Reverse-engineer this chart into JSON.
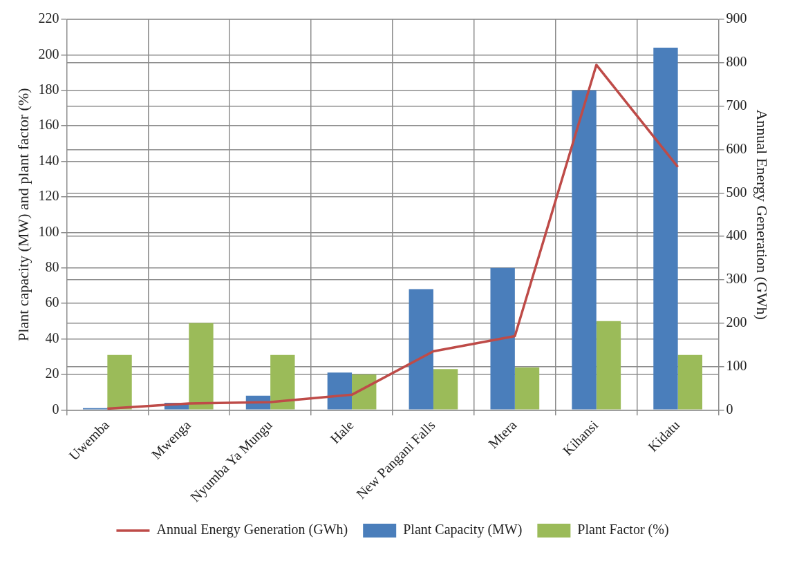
{
  "chart_data": {
    "type": "bar",
    "ylabel": "Plant capacity (MW) and plant factor (%)",
    "y2label": "Annual Energy Generation (GWh)",
    "categories": [
      "Uwemba",
      "Mwenga",
      "Nyumba Ya Mungu",
      "Hale",
      "New Pangani Falls",
      "Mtera",
      "Kihansi",
      "Kidatu"
    ],
    "series": [
      {
        "name": "Plant Capacity (MW)",
        "color": "#4a7ebb",
        "values": [
          1,
          4,
          8,
          21,
          68,
          80,
          180,
          204
        ]
      },
      {
        "name": "Plant Factor (%)",
        "color": "#9bbb59",
        "values": [
          31,
          49,
          31,
          20,
          23,
          24,
          50,
          31
        ]
      },
      {
        "name": "Annual Energy Generation (GWh)",
        "type": "line",
        "axis": "y2",
        "color": "#be4b48",
        "values": [
          3,
          15,
          18,
          35,
          135,
          170,
          795,
          560
        ]
      }
    ],
    "ylim": [
      0,
      220
    ],
    "yticks": [
      0,
      20,
      40,
      60,
      80,
      100,
      120,
      140,
      160,
      180,
      200,
      220
    ],
    "y2lim": [
      0,
      900
    ],
    "y2ticks": [
      0,
      100,
      200,
      300,
      400,
      500,
      600,
      700,
      800,
      900
    ],
    "grid": true,
    "legend": "bottom",
    "marker": "none",
    "line_style": "solid"
  }
}
